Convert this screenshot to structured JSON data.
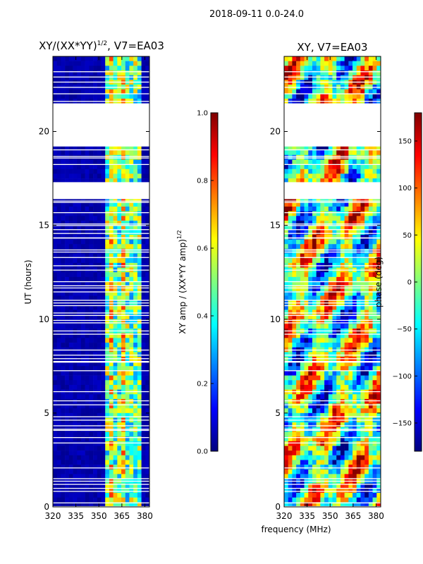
{
  "page": {
    "title": "2018-09-11 0.0-24.0"
  },
  "colorscale": {
    "jet_stops": [
      "#00007f",
      "#0000ff",
      "#007fff",
      "#00ffff",
      "#7fff7f",
      "#ffff00",
      "#ff7f00",
      "#ff0000",
      "#7f0000"
    ]
  },
  "chart_data": [
    {
      "type": "heatmap",
      "title": "XY/(XX*YY)^1/2, V7=EA03",
      "title_main": "XY/(XX*YY)",
      "title_sup": "1/2",
      "title_suffix": ", V7=EA03",
      "xlabel": "frequency (MHz)",
      "ylabel": "UT (hours)",
      "xlim": [
        320,
        383
      ],
      "ylim": [
        0,
        24
      ],
      "xticks": [
        "320",
        "335",
        "350",
        "365",
        "380"
      ],
      "xtick_values": [
        320,
        335,
        350,
        365,
        380
      ],
      "yticks": [
        "0",
        "5",
        "10",
        "15",
        "20"
      ],
      "ytick_values": [
        0,
        5,
        10,
        15,
        20
      ],
      "gaps_hours": [
        [
          19.2,
          21.5
        ],
        [
          16.4,
          17.3
        ]
      ],
      "colorbar": {
        "label": "XY amp / (XX*YY amp)^1/2",
        "label_main": "XY amp / (XX*YY amp)",
        "label_sup": "1/2",
        "range": [
          0.0,
          1.0
        ],
        "ticks": [
          "0.0",
          "0.2",
          "0.4",
          "0.6",
          "0.8",
          "1.0"
        ],
        "tick_values": [
          0.0,
          0.2,
          0.4,
          0.6,
          0.8,
          1.0
        ]
      }
    },
    {
      "type": "heatmap",
      "title": "XY, V7=EA03",
      "xlabel": "frequency (MHz)",
      "ylabel": "",
      "xlim": [
        320,
        383
      ],
      "ylim": [
        0,
        24
      ],
      "xticks": [
        "320",
        "335",
        "350",
        "365",
        "380"
      ],
      "xtick_values": [
        320,
        335,
        350,
        365,
        380
      ],
      "yticks": [
        "0",
        "5",
        "10",
        "15",
        "20"
      ],
      "ytick_values": [
        0,
        5,
        10,
        15,
        20
      ],
      "gaps_hours": [
        [
          19.2,
          21.5
        ],
        [
          16.4,
          17.3
        ]
      ],
      "colorbar": {
        "label": "phase (deg)",
        "range": [
          -180,
          180
        ],
        "ticks": [
          "−150",
          "−100",
          "−50",
          "0",
          "50",
          "100",
          "150"
        ],
        "tick_values": [
          -150,
          -100,
          -50,
          0,
          50,
          100,
          150
        ]
      }
    }
  ]
}
